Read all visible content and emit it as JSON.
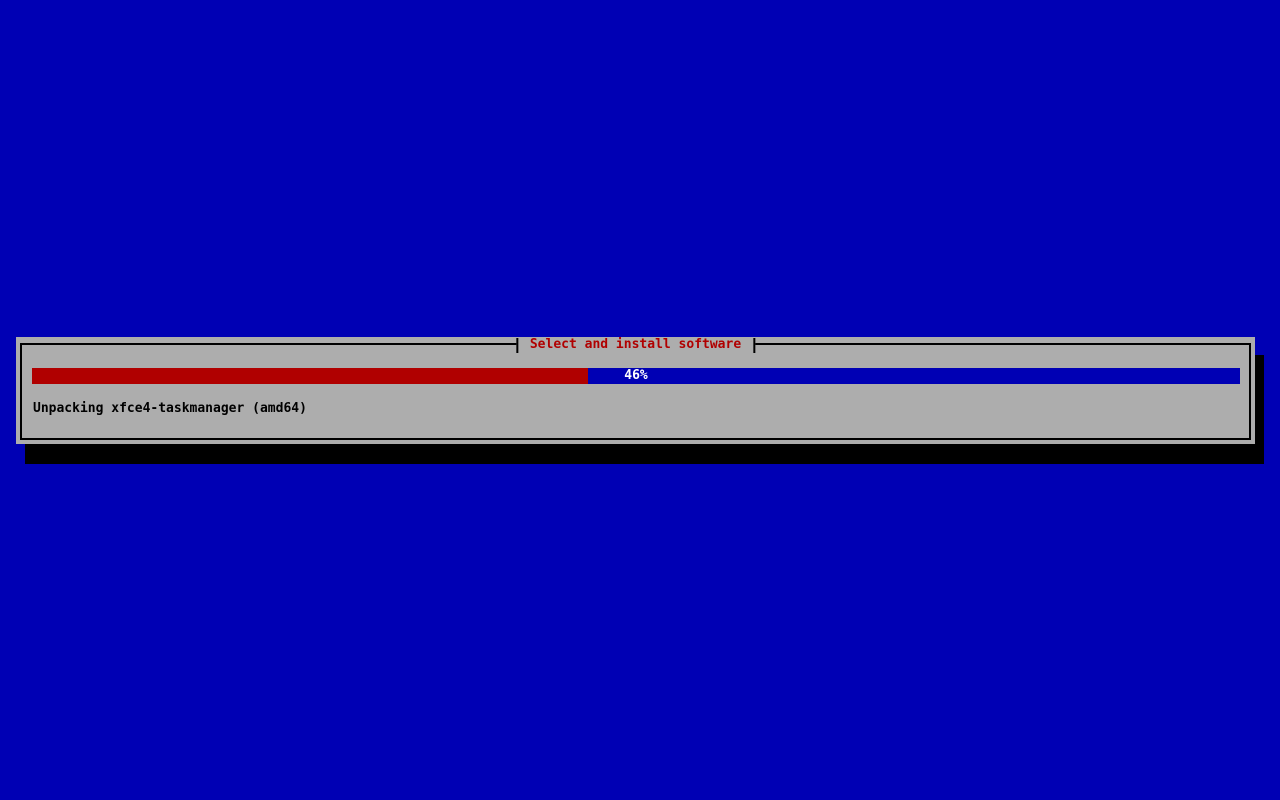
{
  "dialog": {
    "title": "Select and install software",
    "progress": {
      "percent": 46,
      "label": "46%"
    },
    "status_text": "Unpacking xfce4-taskmanager (amd64)"
  },
  "colors": {
    "background": "#0000b4",
    "dialog_bg": "#adadad",
    "track": "#0000b4",
    "fill": "#b00000",
    "title": "#b00000",
    "status": "#000000",
    "percent_text": "#ffffff",
    "shadow": "#000000",
    "border": "#000000"
  }
}
